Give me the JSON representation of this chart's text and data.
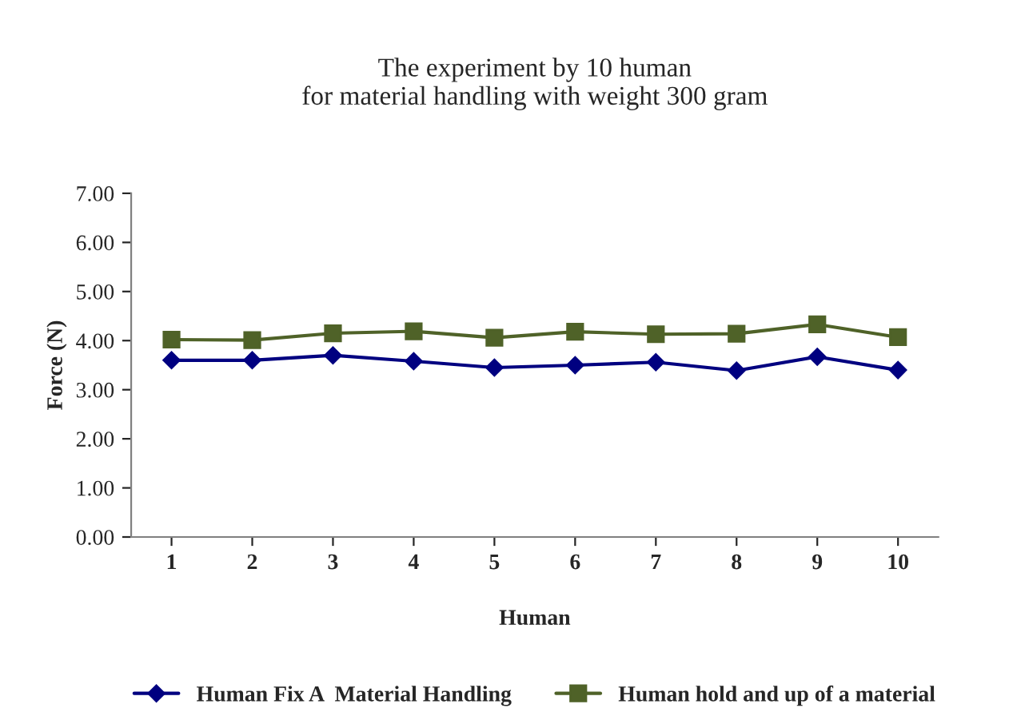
{
  "chart_data": {
    "type": "line",
    "title": "The experiment by 10 human\nfor material handling with weight 300 gram",
    "xlabel": "Human",
    "ylabel": "Force (N)",
    "categories": [
      "1",
      "2",
      "3",
      "4",
      "5",
      "6",
      "7",
      "8",
      "9",
      "10"
    ],
    "series": [
      {
        "name": "Human Fix A  Material Handling",
        "color": "#000080",
        "marker": "diamond",
        "values": [
          3.6,
          3.6,
          3.7,
          3.58,
          3.45,
          3.5,
          3.56,
          3.39,
          3.67,
          3.4
        ]
      },
      {
        "name": "Human hold and up of a material",
        "color": "#4f6228",
        "marker": "square",
        "values": [
          4.02,
          4.01,
          4.15,
          4.19,
          4.06,
          4.18,
          4.13,
          4.14,
          4.33,
          4.07
        ]
      }
    ],
    "ylim": [
      0,
      7
    ],
    "yticks": [
      {
        "value": 0,
        "label": "0.00"
      },
      {
        "value": 1,
        "label": "1.00"
      },
      {
        "value": 2,
        "label": "2.00"
      },
      {
        "value": 3,
        "label": "3.00"
      },
      {
        "value": 4,
        "label": "4.00"
      },
      {
        "value": 5,
        "label": "5.00"
      },
      {
        "value": 6,
        "label": "6.00"
      },
      {
        "value": 7,
        "label": "7.00"
      }
    ],
    "grid": false,
    "legend": "bottom"
  }
}
